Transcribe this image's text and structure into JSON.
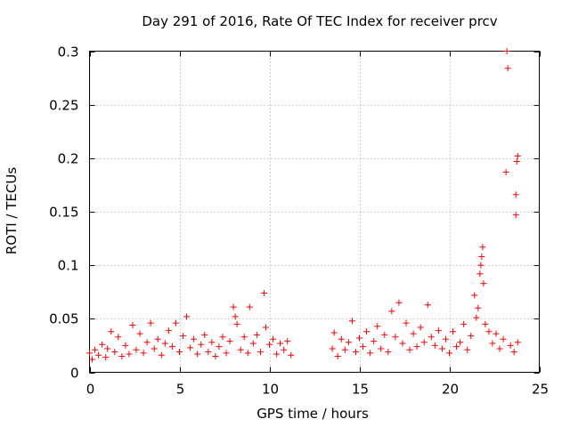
{
  "chart_data": {
    "type": "scatter",
    "title": "Day 291 of 2016, Rate Of TEC Index for receiver prcv",
    "xlabel": "GPS time / hours",
    "ylabel": "ROTI / TECUs",
    "xlim": [
      0,
      25
    ],
    "ylim": [
      0,
      0.3
    ],
    "xticks": [
      0,
      5,
      10,
      15,
      20,
      25
    ],
    "xtick_labels": [
      "0",
      "5",
      "10",
      "15",
      "20",
      "25"
    ],
    "yticks": [
      0,
      0.05,
      0.1,
      0.15,
      0.2,
      0.25,
      0.3
    ],
    "ytick_labels": [
      "0",
      "0.05",
      "0.1",
      "0.15",
      "0.2",
      "0.25",
      "0.3"
    ],
    "grid": true,
    "marker": "+",
    "color": "#ff0000",
    "series": [
      {
        "name": "ROTI",
        "points": [
          [
            0.0,
            0.018
          ],
          [
            0.15,
            0.012
          ],
          [
            0.3,
            0.021
          ],
          [
            0.5,
            0.016
          ],
          [
            0.7,
            0.026
          ],
          [
            0.9,
            0.014
          ],
          [
            1.0,
            0.022
          ],
          [
            1.2,
            0.038
          ],
          [
            1.4,
            0.019
          ],
          [
            1.6,
            0.033
          ],
          [
            1.8,
            0.015
          ],
          [
            2.0,
            0.025
          ],
          [
            2.2,
            0.017
          ],
          [
            2.4,
            0.044
          ],
          [
            2.6,
            0.021
          ],
          [
            2.8,
            0.036
          ],
          [
            3.0,
            0.018
          ],
          [
            3.2,
            0.028
          ],
          [
            3.4,
            0.046
          ],
          [
            3.6,
            0.022
          ],
          [
            3.8,
            0.031
          ],
          [
            4.0,
            0.016
          ],
          [
            4.2,
            0.027
          ],
          [
            4.4,
            0.039
          ],
          [
            4.6,
            0.024
          ],
          [
            4.8,
            0.046
          ],
          [
            5.0,
            0.019
          ],
          [
            5.2,
            0.034
          ],
          [
            5.4,
            0.052
          ],
          [
            5.6,
            0.023
          ],
          [
            5.8,
            0.031
          ],
          [
            6.0,
            0.017
          ],
          [
            6.2,
            0.026
          ],
          [
            6.4,
            0.035
          ],
          [
            6.6,
            0.019
          ],
          [
            6.8,
            0.028
          ],
          [
            7.0,
            0.015
          ],
          [
            7.2,
            0.024
          ],
          [
            7.4,
            0.033
          ],
          [
            7.6,
            0.018
          ],
          [
            7.8,
            0.029
          ],
          [
            8.0,
            0.061
          ],
          [
            8.1,
            0.052
          ],
          [
            8.2,
            0.045
          ],
          [
            8.4,
            0.021
          ],
          [
            8.6,
            0.033
          ],
          [
            8.8,
            0.018
          ],
          [
            8.9,
            0.061
          ],
          [
            9.1,
            0.027
          ],
          [
            9.3,
            0.035
          ],
          [
            9.5,
            0.019
          ],
          [
            9.7,
            0.074
          ],
          [
            9.8,
            0.042
          ],
          [
            10.0,
            0.026
          ],
          [
            10.2,
            0.031
          ],
          [
            10.4,
            0.017
          ],
          [
            10.6,
            0.027
          ],
          [
            10.8,
            0.021
          ],
          [
            11.0,
            0.029
          ],
          [
            11.2,
            0.016
          ],
          [
            13.5,
            0.022
          ],
          [
            13.6,
            0.037
          ],
          [
            13.8,
            0.015
          ],
          [
            14.0,
            0.031
          ],
          [
            14.2,
            0.021
          ],
          [
            14.4,
            0.028
          ],
          [
            14.6,
            0.048
          ],
          [
            14.8,
            0.019
          ],
          [
            15.0,
            0.032
          ],
          [
            15.2,
            0.024
          ],
          [
            15.4,
            0.038
          ],
          [
            15.6,
            0.018
          ],
          [
            15.8,
            0.029
          ],
          [
            16.0,
            0.043
          ],
          [
            16.2,
            0.022
          ],
          [
            16.4,
            0.035
          ],
          [
            16.6,
            0.019
          ],
          [
            16.8,
            0.057
          ],
          [
            17.0,
            0.033
          ],
          [
            17.2,
            0.065
          ],
          [
            17.4,
            0.027
          ],
          [
            17.6,
            0.046
          ],
          [
            17.8,
            0.021
          ],
          [
            18.0,
            0.036
          ],
          [
            18.2,
            0.024
          ],
          [
            18.4,
            0.042
          ],
          [
            18.6,
            0.028
          ],
          [
            18.8,
            0.063
          ],
          [
            19.0,
            0.033
          ],
          [
            19.2,
            0.025
          ],
          [
            19.4,
            0.039
          ],
          [
            19.6,
            0.022
          ],
          [
            19.8,
            0.031
          ],
          [
            20.0,
            0.018
          ],
          [
            20.2,
            0.038
          ],
          [
            20.4,
            0.024
          ],
          [
            20.6,
            0.028
          ],
          [
            20.8,
            0.045
          ],
          [
            21.0,
            0.021
          ],
          [
            21.2,
            0.034
          ],
          [
            21.4,
            0.072
          ],
          [
            21.5,
            0.051
          ],
          [
            21.6,
            0.06
          ],
          [
            21.7,
            0.092
          ],
          [
            21.75,
            0.1
          ],
          [
            21.8,
            0.108
          ],
          [
            21.85,
            0.117
          ],
          [
            21.9,
            0.083
          ],
          [
            22.0,
            0.045
          ],
          [
            22.2,
            0.038
          ],
          [
            22.4,
            0.027
          ],
          [
            22.6,
            0.036
          ],
          [
            22.8,
            0.022
          ],
          [
            23.0,
            0.031
          ],
          [
            23.2,
            0.3
          ],
          [
            23.25,
            0.284
          ],
          [
            23.15,
            0.187
          ],
          [
            23.4,
            0.025
          ],
          [
            23.6,
            0.019
          ],
          [
            23.7,
            0.166
          ],
          [
            23.7,
            0.147
          ],
          [
            23.75,
            0.197
          ],
          [
            23.8,
            0.202
          ],
          [
            23.8,
            0.028
          ]
        ]
      }
    ]
  }
}
